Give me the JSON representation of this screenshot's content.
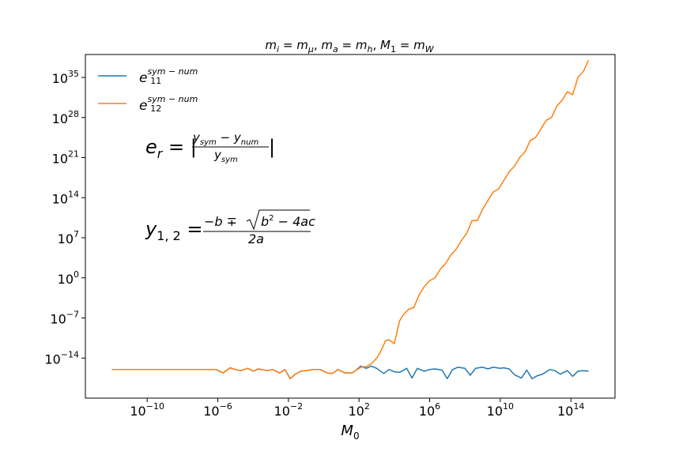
{
  "chart_data": {
    "type": "line",
    "title": "m_i = m_μ, m_a = m_h, M_1 = m_W",
    "xlabel": "M_0",
    "ylabel": "",
    "x_scale": "log",
    "y_scale": "log",
    "xlim_exp": [
      -13.5,
      16.5
    ],
    "ylim_exp": [
      -21,
      39
    ],
    "x_ticks": [
      {
        "base": "10",
        "exp": "−10",
        "value": -10
      },
      {
        "base": "10",
        "exp": "−6",
        "value": -6
      },
      {
        "base": "10",
        "exp": "−2",
        "value": -2
      },
      {
        "base": "10",
        "exp": "2",
        "value": 2
      },
      {
        "base": "10",
        "exp": "6",
        "value": 6
      },
      {
        "base": "10",
        "exp": "10",
        "value": 10
      },
      {
        "base": "10",
        "exp": "14",
        "value": 14
      }
    ],
    "y_ticks": [
      {
        "base": "10",
        "exp": "35",
        "value": 35
      },
      {
        "base": "10",
        "exp": "28",
        "value": 28
      },
      {
        "base": "10",
        "exp": "21",
        "value": 21
      },
      {
        "base": "10",
        "exp": "14",
        "value": 14
      },
      {
        "base": "10",
        "exp": "7",
        "value": 7
      },
      {
        "base": "10",
        "exp": "0",
        "value": 0
      },
      {
        "base": "10",
        "exp": "−7",
        "value": -7
      },
      {
        "base": "10",
        "exp": "−14",
        "value": -14
      }
    ],
    "legend_position": "top-left",
    "series": [
      {
        "name": "e11 sym−num",
        "legend_base": "e",
        "legend_sub": "11",
        "legend_sup": "sym − num",
        "color": "#1f77b4",
        "x_log10": [
          -12,
          -10,
          -8,
          -6.1,
          -5.7,
          -5.3,
          -5.0,
          -4.7,
          -4.3,
          -4.0,
          -3.7,
          -3.2,
          -2.9,
          -2.5,
          -2.2,
          -1.9,
          -1.6,
          -1.3,
          -1.0,
          -0.6,
          -0.2,
          0.2,
          0.5,
          0.8,
          1.2,
          1.6,
          1.8,
          2.1,
          2.4,
          2.7,
          3.0,
          3.4,
          3.7,
          4.0,
          4.3,
          4.7,
          5.0,
          5.3,
          5.7,
          6.0,
          6.3,
          6.7,
          7.0,
          7.3,
          7.6,
          8.0,
          8.3,
          8.6,
          9.0,
          9.3,
          9.6,
          10.0,
          10.2,
          10.5,
          10.8,
          11.2,
          11.5,
          11.8,
          12.1,
          12.4,
          12.8,
          13.1,
          13.4,
          13.8,
          14.1,
          14.4,
          14.7,
          15.0
        ],
        "y_log10": [
          -16.0,
          -16.0,
          -16.0,
          -16.0,
          -16.6,
          -15.7,
          -16.0,
          -16.2,
          -15.8,
          -16.3,
          -15.9,
          -16.2,
          -16.0,
          -16.6,
          -16.0,
          -17.6,
          -16.8,
          -16.3,
          -16.2,
          -16.0,
          -16.0,
          -16.6,
          -16.7,
          -16.0,
          -16.6,
          -16.6,
          -16.2,
          -15.4,
          -15.8,
          -15.4,
          -15.8,
          -16.7,
          -16.0,
          -16.4,
          -16.5,
          -15.8,
          -17.5,
          -15.8,
          -16.3,
          -16.0,
          -15.9,
          -16.1,
          -17.6,
          -16.0,
          -15.6,
          -15.8,
          -17.0,
          -15.8,
          -15.6,
          -15.9,
          -15.6,
          -15.8,
          -15.7,
          -15.9,
          -16.9,
          -17.5,
          -16.1,
          -17.6,
          -17.1,
          -16.8,
          -16.0,
          -16.2,
          -16.8,
          -16.2,
          -17.2,
          -16.3,
          -16.2,
          -16.3
        ]
      },
      {
        "name": "e12 sym−num",
        "legend_base": "e",
        "legend_sub": "12",
        "legend_sup": "sym − num",
        "color": "#ff7f0e",
        "x_log10": [
          -12,
          -10,
          -8,
          -6.1,
          -5.7,
          -5.3,
          -5.0,
          -4.7,
          -4.3,
          -4.0,
          -3.7,
          -3.2,
          -2.9,
          -2.5,
          -2.2,
          -1.9,
          -1.6,
          -1.3,
          -1.0,
          -0.6,
          -0.2,
          0.2,
          0.5,
          0.8,
          1.2,
          1.6,
          1.8,
          2.1,
          2.4,
          2.7,
          3.0,
          3.2,
          3.5,
          3.7,
          4.0,
          4.3,
          4.5,
          4.8,
          5.1,
          5.4,
          5.7,
          6.0,
          6.3,
          6.6,
          6.9,
          7.2,
          7.5,
          7.8,
          8.1,
          8.4,
          8.7,
          9.0,
          9.3,
          9.6,
          9.9,
          10.2,
          10.5,
          10.8,
          11.1,
          11.4,
          11.7,
          12.0,
          12.3,
          12.6,
          12.9,
          13.2,
          13.5,
          13.8,
          14.1,
          14.4,
          14.7,
          15.0
        ],
        "y_log10": [
          -16.0,
          -16.0,
          -16.0,
          -16.0,
          -16.6,
          -15.7,
          -16.0,
          -16.2,
          -15.8,
          -16.3,
          -15.9,
          -16.2,
          -16.0,
          -16.6,
          -16.0,
          -17.6,
          -16.8,
          -16.3,
          -16.2,
          -16.0,
          -16.0,
          -16.6,
          -16.7,
          -16.0,
          -16.6,
          -16.6,
          -16.2,
          -15.6,
          -15.5,
          -15.0,
          -14.0,
          -13.0,
          -11.0,
          -10.8,
          -11.5,
          -7.5,
          -6.5,
          -5.5,
          -5.2,
          -3.0,
          -1.5,
          -0.5,
          0.0,
          1.5,
          2.5,
          4.0,
          5.0,
          6.5,
          7.8,
          10.0,
          10.0,
          12.0,
          13.5,
          15.0,
          15.5,
          17.0,
          18.5,
          19.5,
          21.0,
          22.0,
          24.0,
          24.5,
          26.0,
          27.5,
          28.0,
          30.0,
          31.0,
          32.5,
          32.0,
          35.0,
          36.0,
          38.0
        ]
      }
    ]
  },
  "annotations": {
    "error_formula": {
      "lhs_base": "e",
      "lhs_sub": "r",
      "equals": " = |",
      "numerator": "y_sym − y_num",
      "num_y1": "y",
      "num_y1_sub": "sym",
      "num_minus": " − ",
      "num_y2": "y",
      "num_y2_sub": "num",
      "den_y": "y",
      "den_sub": "sym",
      "close": "|"
    },
    "quadratic_formula": {
      "lhs_base": "y",
      "lhs_sub": "1, 2",
      "equals": " = ",
      "num_prefix": "−b ∓ ",
      "radicand_b": "b",
      "radicand_sup": "2",
      "radicand_rest": " − 4ac",
      "denominator": "2a"
    }
  }
}
